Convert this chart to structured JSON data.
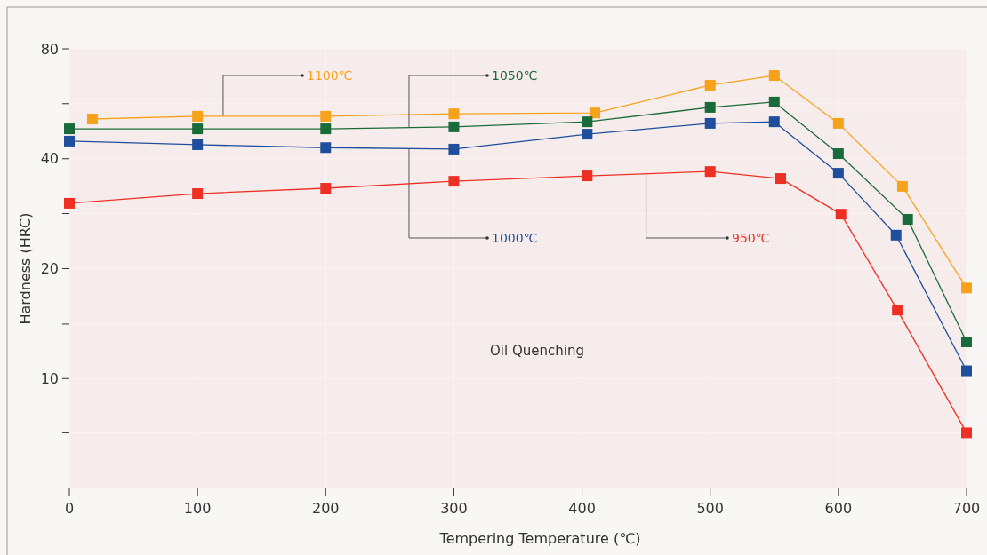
{
  "chart_data": {
    "type": "line",
    "xlabel": "Tempering Temperature (℃)",
    "ylabel": "Hardness (HRC)",
    "log": "y",
    "xlim": [
      0,
      700
    ],
    "xticks": [
      0,
      100,
      200,
      300,
      400,
      500,
      600,
      700
    ],
    "ylim": [
      5,
      80
    ],
    "yticks": [
      80,
      {
        "value": 56.6,
        "label": null
      },
      40,
      {
        "value": 28.3,
        "label": null
      },
      20,
      {
        "value": 14.1,
        "label": null
      },
      10,
      {
        "value": 7.1,
        "label": null
      }
    ],
    "grid": true,
    "marker": "square",
    "line_style": "solid",
    "annotations": [
      "Oil Quenching"
    ],
    "series": [
      {
        "name": "1100℃",
        "color": "#f7a21b",
        "x": [
          18,
          100,
          200,
          300,
          410,
          500,
          550,
          600,
          650,
          700
        ],
        "values": [
          51.4,
          52.3,
          52.3,
          53.1,
          53.4,
          63.6,
          67.6,
          50.0,
          33.6,
          17.7
        ]
      },
      {
        "name": "1050℃",
        "color": "#1a6b3a",
        "x": [
          0,
          100,
          200,
          300,
          404,
          500,
          550,
          600,
          654,
          700
        ],
        "values": [
          48.3,
          48.3,
          48.3,
          48.9,
          50.5,
          55.3,
          57.2,
          41.3,
          27.3,
          12.6
        ]
      },
      {
        "name": "1000℃",
        "color": "#1f4e9c",
        "x": [
          0,
          100,
          200,
          300,
          404,
          500,
          550,
          600,
          645,
          700
        ],
        "values": [
          44.7,
          43.7,
          42.9,
          42.5,
          46.7,
          50.0,
          50.5,
          36.5,
          24.7,
          10.5
        ]
      },
      {
        "name": "950℃",
        "color": "#ee3024",
        "x": [
          0,
          100,
          200,
          300,
          404,
          500,
          555,
          602,
          646,
          700
        ],
        "values": [
          30.2,
          32.1,
          33.2,
          34.7,
          35.9,
          36.9,
          35.3,
          28.2,
          15.4,
          7.1
        ]
      }
    ]
  }
}
